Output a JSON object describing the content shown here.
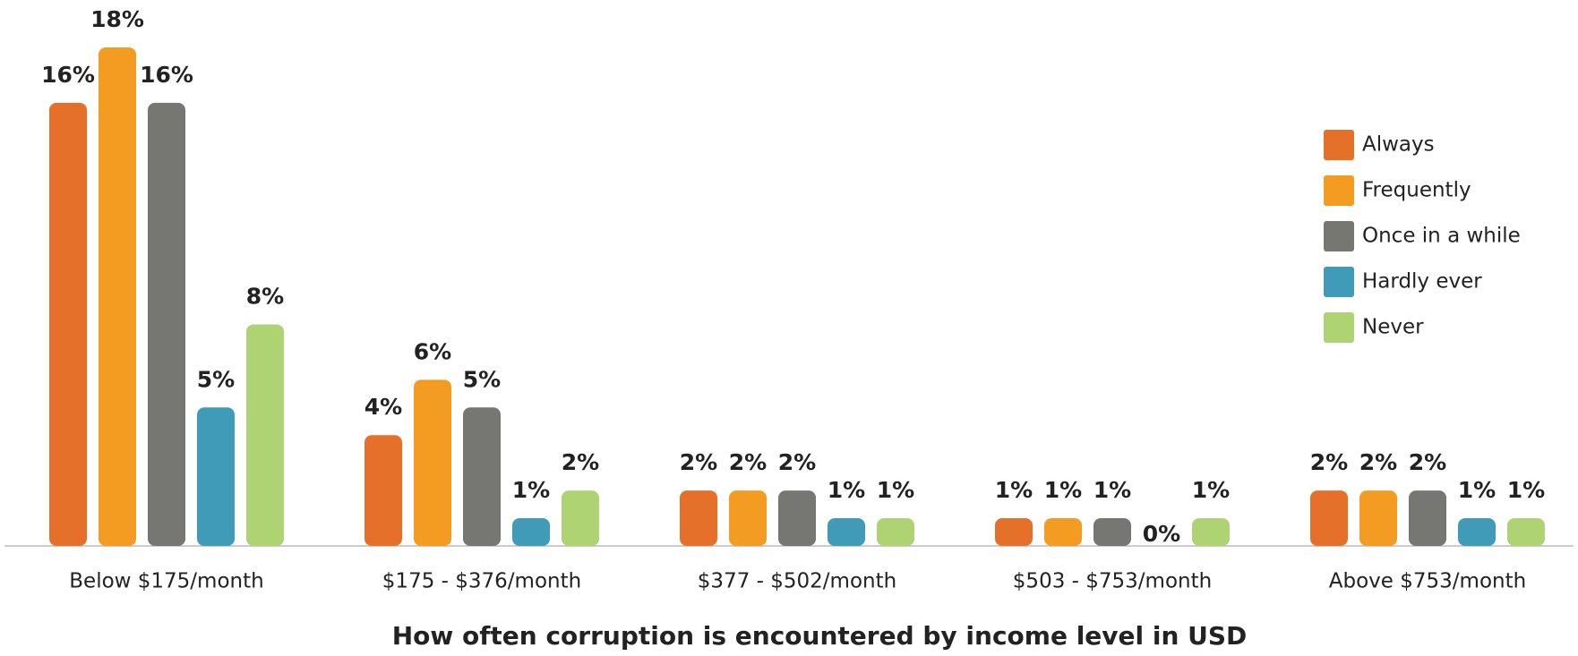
{
  "chart_data": {
    "type": "bar",
    "title": "How often corruption is encountered by income level in USD",
    "categories": [
      "Below $175/month",
      "$175 - $376/month",
      "$377 - $502/month",
      "$503 - $753/month",
      "Above $753/month"
    ],
    "series": [
      {
        "name": "Always",
        "color": "#e5702a",
        "values": [
          16,
          4,
          2,
          1,
          2
        ],
        "value_labels": [
          "16%",
          "4%",
          "2%",
          "1%",
          "2%"
        ]
      },
      {
        "name": "Frequently",
        "color": "#f49c22",
        "values": [
          18,
          6,
          2,
          1,
          2
        ],
        "value_labels": [
          "18%",
          "6%",
          "2%",
          "1%",
          "2%"
        ]
      },
      {
        "name": "Once in a while",
        "color": "#767672",
        "values": [
          16,
          5,
          2,
          1,
          2
        ],
        "value_labels": [
          "16%",
          "5%",
          "2%",
          "1%",
          "2%"
        ]
      },
      {
        "name": "Hardly ever",
        "color": "#3f9bb8",
        "values": [
          5,
          1,
          1,
          0,
          1
        ],
        "value_labels": [
          "5%",
          "1%",
          "1%",
          "0%",
          "1%"
        ]
      },
      {
        "name": "Never",
        "color": "#aed372",
        "values": [
          8,
          2,
          1,
          1,
          1
        ],
        "value_labels": [
          "8%",
          "2%",
          "1%",
          "1%",
          "1%"
        ]
      }
    ],
    "legend": "right"
  }
}
